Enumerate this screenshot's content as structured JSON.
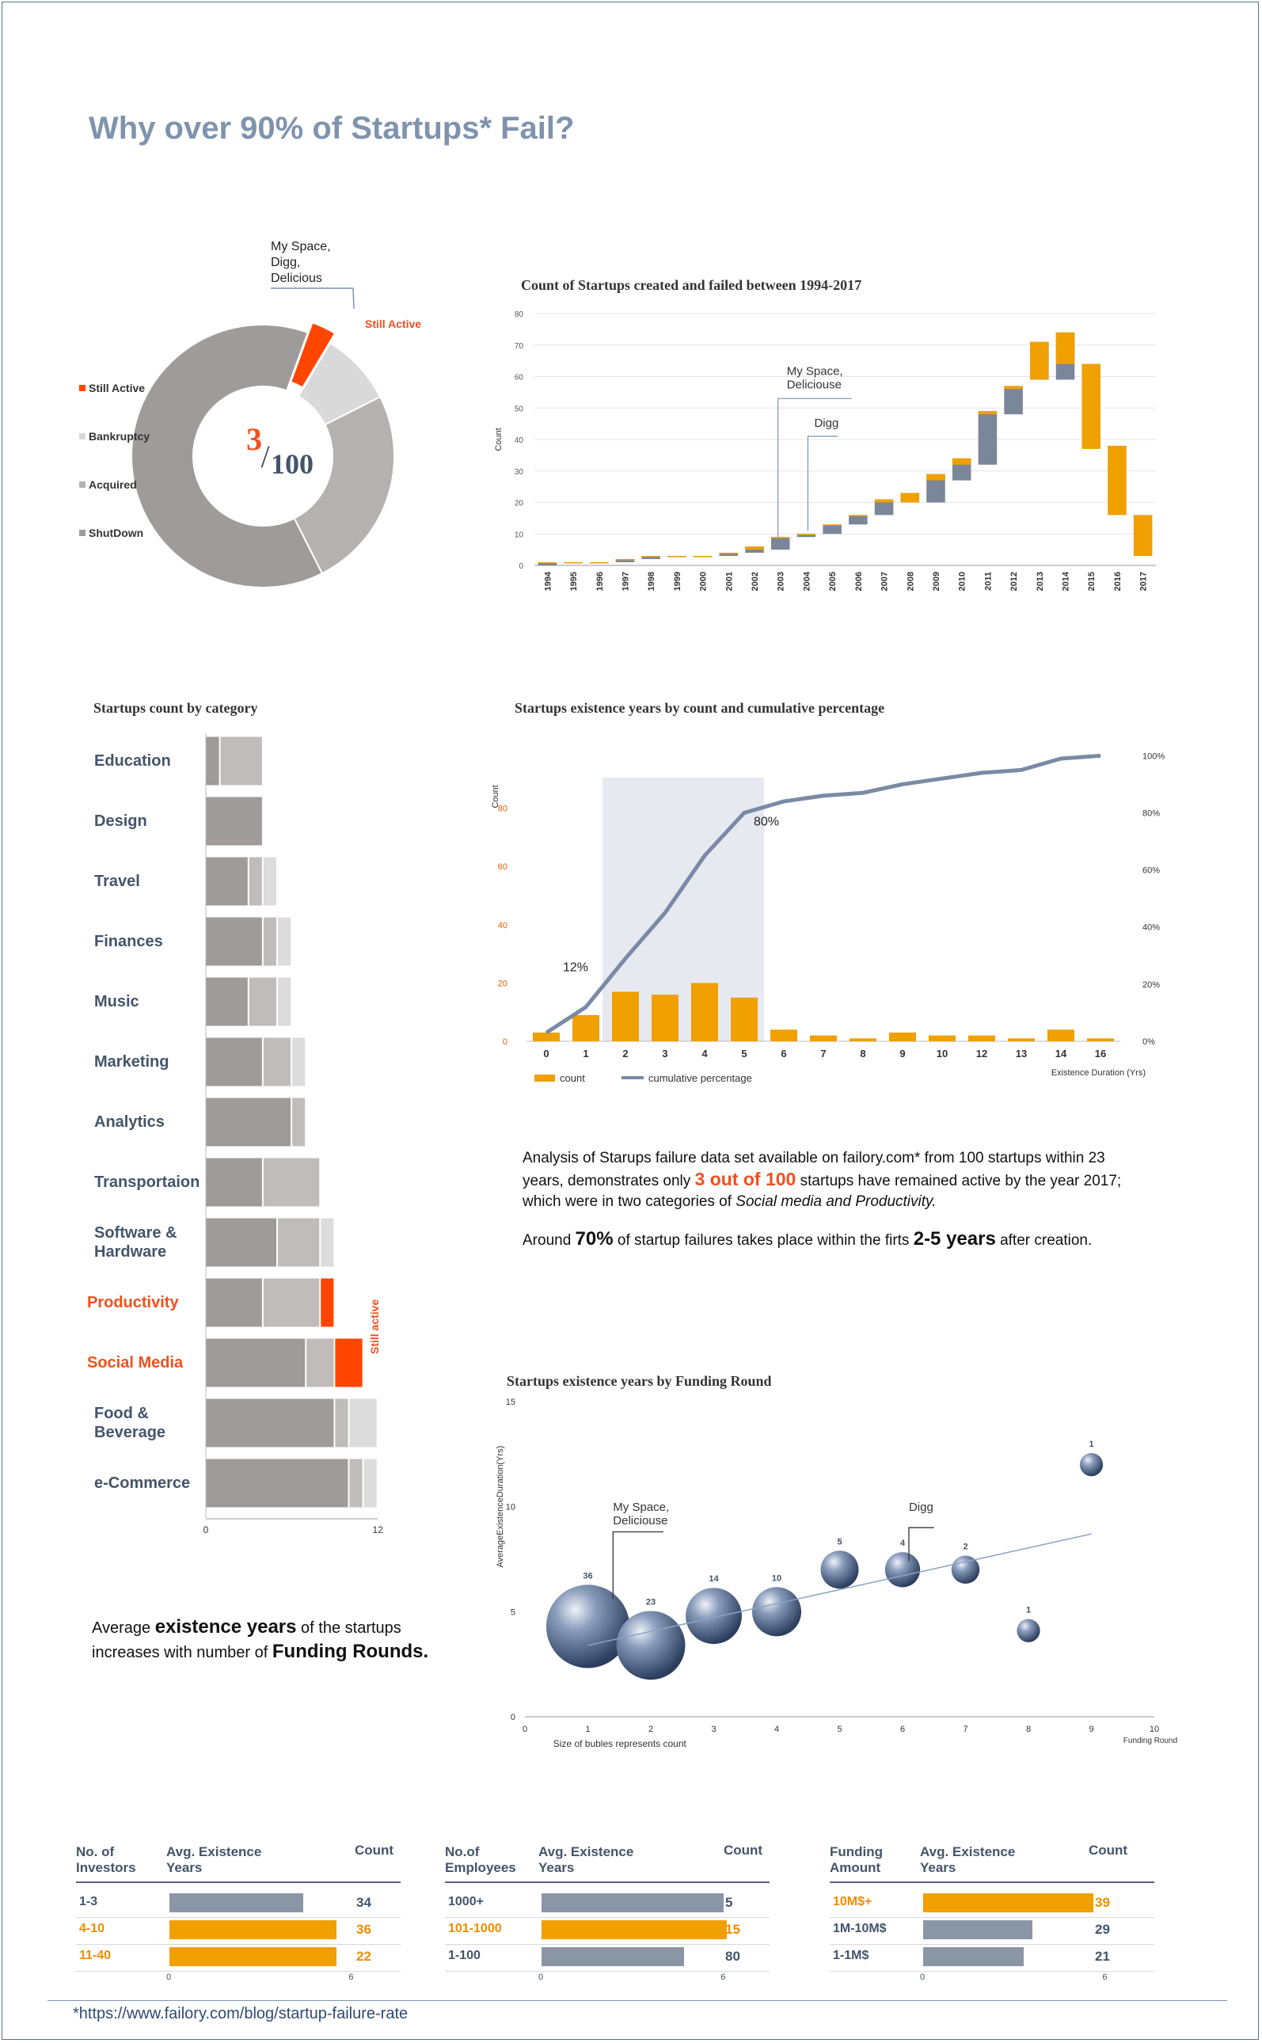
{
  "title": "Why over 90% of Startups* Fail?",
  "donut": {
    "center_numerator": "3",
    "center_denominator": "100",
    "callout_label": "Still Active",
    "callout_text": [
      "My Space,",
      "Digg,",
      "Delicious"
    ],
    "legend": [
      {
        "label": "Still Active",
        "color": "#ff4500"
      },
      {
        "label": "Bankruptcy",
        "color": "#d9d9d9"
      },
      {
        "label": "Acquired",
        "color": "#b5b1b1"
      },
      {
        "label": "ShutDown",
        "color": "#a09b9b"
      }
    ]
  },
  "stats_text": {
    "p1_a": "Analysis  of Starups failure data set available on failory.com* from 100 startups within 23 years, demonstrates only ",
    "p1_highlight": "3 out of 100",
    "p1_b": " startups have remained active by the year 2017; which were in two categories of ",
    "p1_italic": "Social media and Productivity.",
    "p2_a": "Around ",
    "p2_pct": "70%",
    "p2_b": " of startup failures takes place within the firts ",
    "p2_years": "2-5 years",
    "p2_c": " after creation."
  },
  "funding_text": {
    "a": "Average ",
    "b": "existence years",
    "c": " of the startups increases with number of ",
    "d": "Funding Rounds."
  },
  "category_chart": {
    "title": "Startups count by category",
    "still_active_label": "Still active",
    "axis_min": "0",
    "axis_max": "12"
  },
  "tables": [
    {
      "headers": [
        "No. of Investors",
        "Avg. Existence Years",
        "Count"
      ],
      "rows": [
        {
          "label": "1-3",
          "value": 4.4,
          "count": "34",
          "highlight": false
        },
        {
          "label": "4-10",
          "value": 5.5,
          "count": "36",
          "highlight": true
        },
        {
          "label": "11-40",
          "value": 5.5,
          "count": "22",
          "highlight": true
        }
      ],
      "axis": [
        "0",
        "6"
      ]
    },
    {
      "headers": [
        "No.of Employees",
        "Avg. Existence Years",
        "Count"
      ],
      "rows": [
        {
          "label": "1000+",
          "value": 6.0,
          "count": "5",
          "highlight": false
        },
        {
          "label": "101-1000",
          "value": 6.1,
          "count": "15",
          "highlight": true
        },
        {
          "label": "1-100",
          "value": 4.7,
          "count": "80",
          "highlight": false
        }
      ],
      "axis": [
        "0",
        "6"
      ]
    },
    {
      "headers": [
        "Funding Amount",
        "Avg. Existence Years",
        "Count"
      ],
      "rows": [
        {
          "label": "10M$+",
          "value": 5.6,
          "count": "39",
          "highlight": true
        },
        {
          "label": "1M-10M$",
          "value": 3.6,
          "count": "29",
          "highlight": false
        },
        {
          "label": "1-1M$",
          "value": 3.3,
          "count": "21",
          "highlight": false
        }
      ],
      "axis": [
        "0",
        "6"
      ]
    }
  ],
  "footer": "*https://www.failory.com/blog/startup-failure-rate",
  "chart_data": [
    {
      "type": "pie",
      "title": "",
      "categories": [
        "Still Active",
        "Bankruptcy",
        "Acquired",
        "ShutDown"
      ],
      "values": [
        3,
        9,
        25,
        63
      ],
      "colors": [
        "#ff4500",
        "#d9d9d9",
        "#b5b1b1",
        "#a09b9b"
      ]
    },
    {
      "type": "bar",
      "subtype": "waterfall",
      "title": "Count of Startups created and failed between 1994-2017",
      "ylabel": "Count",
      "ylim": [
        0,
        80
      ],
      "yticks": [
        0,
        10,
        20,
        30,
        40,
        50,
        60,
        70,
        80
      ],
      "categories": [
        "1994",
        "1995",
        "1996",
        "1997",
        "1998",
        "1999",
        "2000",
        "2001",
        "2002",
        "2003",
        "2004",
        "2005",
        "2006",
        "2007",
        "2008",
        "2009",
        "2010",
        "2011",
        "2012",
        "2013",
        "2014",
        "2015",
        "2016",
        "2017"
      ],
      "series": [
        {
          "name": "created",
          "color": "#7a8699",
          "segments": [
            [
              0,
              1
            ],
            [
              1,
              1
            ],
            [
              1,
              1
            ],
            [
              1,
              2
            ],
            [
              2,
              3
            ],
            [
              3,
              3
            ],
            [
              3,
              3
            ],
            [
              3,
              4
            ],
            [
              4,
              6
            ],
            [
              5,
              9
            ],
            [
              9,
              10
            ],
            [
              10,
              13
            ],
            [
              13,
              16
            ],
            [
              16,
              21
            ],
            [
              20,
              23
            ],
            [
              20,
              29
            ],
            [
              27,
              34
            ],
            [
              32,
              49
            ],
            [
              48,
              57
            ],
            [
              59,
              71
            ],
            [
              59,
              74
            ],
            [
              62,
              64
            ],
            [
              37,
              38
            ],
            [
              16,
              16
            ]
          ]
        },
        {
          "name": "failed",
          "color": "#f0a000",
          "segments": [
            [
              1,
              1
            ],
            [
              1,
              1
            ],
            [
              1,
              1
            ],
            [
              2,
              2
            ],
            [
              3,
              3
            ],
            [
              3,
              3
            ],
            [
              3,
              3
            ],
            [
              4,
              4
            ],
            [
              5,
              6
            ],
            [
              9,
              9
            ],
            [
              10,
              10
            ],
            [
              13,
              13
            ],
            [
              16,
              16
            ],
            [
              20,
              21
            ],
            [
              20,
              23
            ],
            [
              27,
              29
            ],
            [
              32,
              34
            ],
            [
              48,
              49
            ],
            [
              56,
              57
            ],
            [
              59,
              71
            ],
            [
              64,
              74
            ],
            [
              37,
              64
            ],
            [
              16,
              38
            ],
            [
              3,
              16
            ]
          ]
        }
      ],
      "annotations": [
        {
          "text": [
            "My Space,",
            "Deliciouse"
          ],
          "x": "2003"
        },
        {
          "text": [
            "Digg"
          ],
          "x": "2004"
        }
      ]
    },
    {
      "type": "bar",
      "subtype": "combo_bar_line",
      "title": "Startups existence years by count and cumulative percentage",
      "ylabel": "Count",
      "xlabel": "Existence Duration (Yrs)",
      "ylim": [
        0,
        100
      ],
      "yticks": [
        0,
        20,
        40,
        60,
        80
      ],
      "y2ticks": [
        "0%",
        "20%",
        "40%",
        "60%",
        "80%",
        "100%"
      ],
      "categories": [
        "0",
        "1",
        "2",
        "3",
        "4",
        "5",
        "6",
        "7",
        "8",
        "9",
        "10",
        "12",
        "13",
        "14",
        "16"
      ],
      "series": [
        {
          "name": "count",
          "color": "#f0a000",
          "values": [
            3,
            9,
            17,
            16,
            20,
            15,
            4,
            2,
            1,
            3,
            2,
            2,
            1,
            4,
            1
          ]
        },
        {
          "name": "cumulative percentage",
          "color": "#7a8aa6",
          "values": [
            3,
            12,
            29,
            45,
            65,
            80,
            84,
            86,
            87,
            90,
            92,
            94,
            95,
            99,
            100
          ]
        }
      ],
      "annotations": [
        "12%",
        "80%"
      ]
    },
    {
      "type": "bar",
      "subtype": "stacked_horizontal",
      "title": "Startups count by category",
      "categories": [
        "Education",
        "Design",
        "Travel",
        "Finances",
        "Music",
        "Marketing",
        "Analytics",
        "Transportaion",
        "Software & Hardware",
        "Productivity",
        "Social Media",
        "Food & Beverage",
        "e-Commerce"
      ],
      "highlight": [
        "Productivity",
        "Social Media"
      ],
      "xlim": [
        0,
        12
      ],
      "series": [
        {
          "name": "ShutDown",
          "color": "#a09b9b",
          "values": [
            1,
            4,
            3,
            4,
            3,
            4,
            6,
            4,
            5,
            4,
            7,
            9,
            10
          ]
        },
        {
          "name": "Acquired",
          "color": "#c0bcbc",
          "values": [
            3,
            0,
            1,
            1,
            2,
            2,
            1,
            4,
            3,
            4,
            2,
            1,
            1
          ]
        },
        {
          "name": "Bankruptcy",
          "color": "#dcdcdc",
          "values": [
            0,
            0,
            1,
            1,
            1,
            1,
            0,
            0,
            1,
            0,
            0,
            2,
            1
          ]
        },
        {
          "name": "Still Active",
          "color": "#ff4500",
          "values": [
            0,
            0,
            0,
            0,
            0,
            0,
            0,
            0,
            0,
            1,
            2,
            0,
            0
          ]
        }
      ]
    },
    {
      "type": "scatter",
      "subtype": "bubble",
      "title": "Startups existence years by Funding Round",
      "xlabel": "Funding Round",
      "ylabel": "AverageExistenceDuration(Yrs)",
      "note": "Size of bubles represents count",
      "xlim": [
        0,
        10
      ],
      "ylim": [
        0,
        15
      ],
      "xticks": [
        0,
        1,
        2,
        3,
        4,
        5,
        6,
        7,
        8,
        9,
        10
      ],
      "yticks": [
        0,
        5,
        10,
        15
      ],
      "points": [
        {
          "x": 1,
          "y": 4.3,
          "size": 36
        },
        {
          "x": 2,
          "y": 3.4,
          "size": 23
        },
        {
          "x": 3,
          "y": 4.8,
          "size": 14
        },
        {
          "x": 4,
          "y": 5.0,
          "size": 10
        },
        {
          "x": 5,
          "y": 7.0,
          "size": 5
        },
        {
          "x": 6,
          "y": 7.0,
          "size": 4
        },
        {
          "x": 7,
          "y": 7.0,
          "size": 2
        },
        {
          "x": 8,
          "y": 4.1,
          "size": 1
        },
        {
          "x": 9,
          "y": 12.0,
          "size": 1
        }
      ],
      "trendline": [
        [
          1,
          3.4
        ],
        [
          9,
          8.7
        ]
      ],
      "annotations": [
        {
          "text": [
            "My Space,",
            "Deliciouse"
          ],
          "x": 1
        },
        {
          "text": [
            "Digg"
          ],
          "x": 6
        }
      ]
    }
  ]
}
